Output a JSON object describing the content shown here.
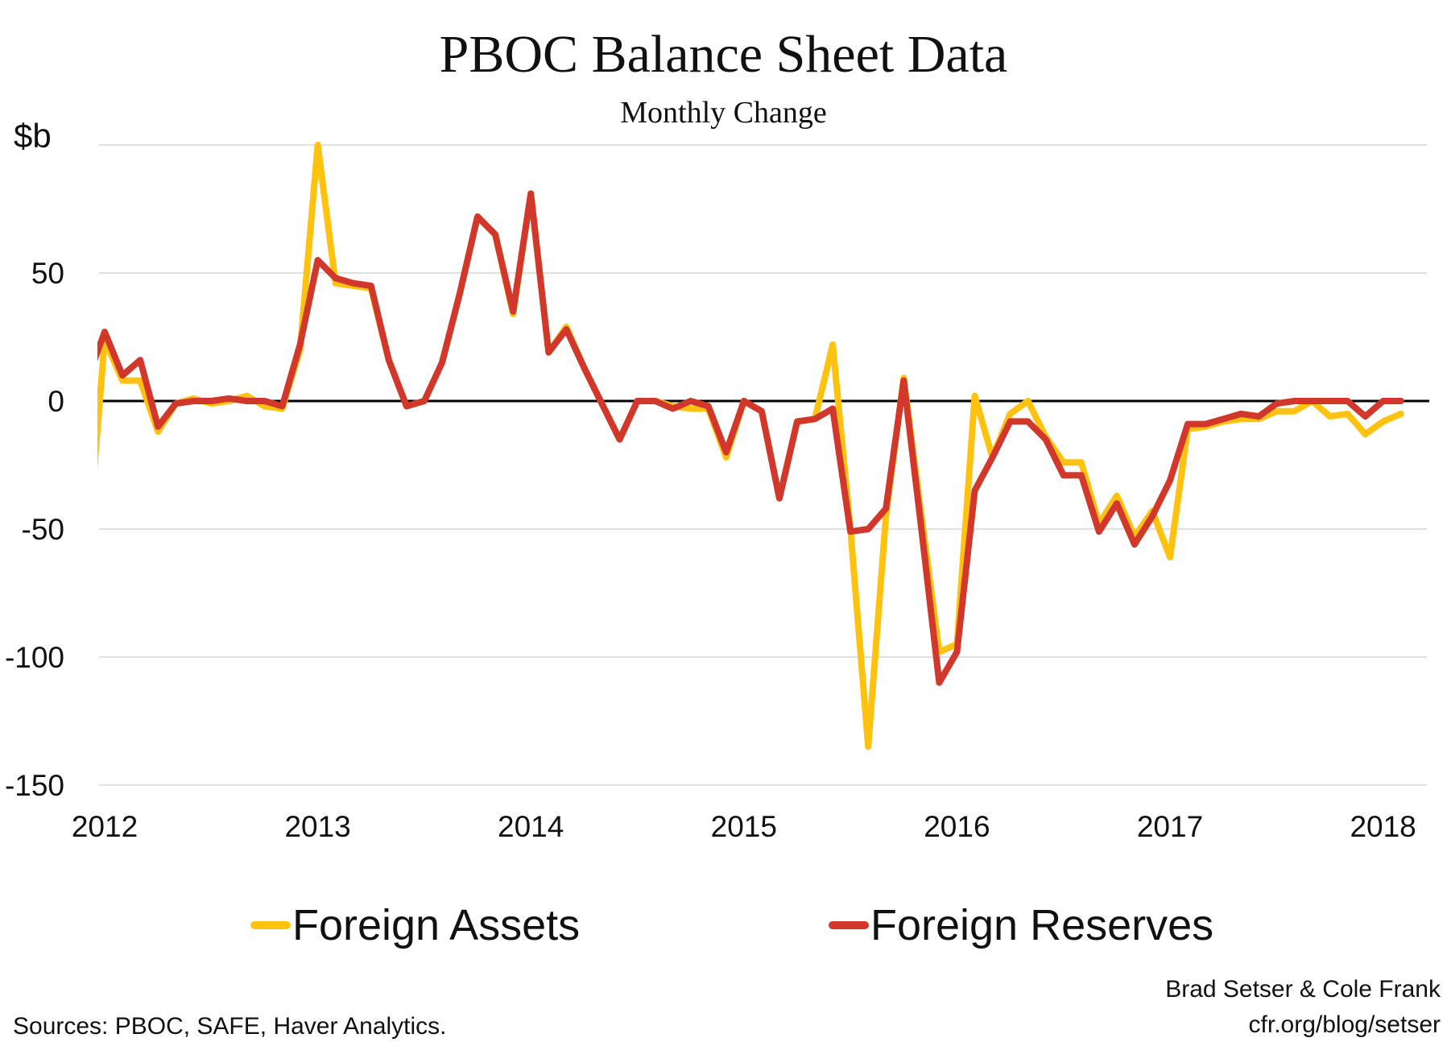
{
  "chart_data": {
    "type": "line",
    "title": "PBOC Balance Sheet Data",
    "subtitle": "Monthly Change",
    "ylabel": "$b",
    "xlabel": "",
    "ylim": [
      -150,
      100
    ],
    "yticks": [
      50,
      0,
      -50,
      -100,
      -150
    ],
    "xtick_labels": [
      "2012",
      "2013",
      "2014",
      "2015",
      "2016",
      "2017",
      "2018"
    ],
    "grid": true,
    "legend": "bottom",
    "x_start": "2011-12",
    "x_frequency": "monthly",
    "series": [
      {
        "name": "Foreign Assets",
        "color": "#FFC20E",
        "values": [
          -62,
          24,
          8,
          8,
          -12,
          -1,
          1,
          -1,
          0,
          2,
          -2,
          -3,
          20,
          100,
          46,
          45,
          44,
          16,
          -2,
          0,
          15,
          42,
          72,
          65,
          34,
          81,
          19,
          29,
          13,
          -1,
          -15,
          0,
          0,
          -2,
          -3,
          -3,
          -22,
          0,
          -4,
          -38,
          -8,
          -7,
          22,
          -50,
          -135,
          -45,
          9,
          -45,
          -98,
          -95,
          2,
          -22,
          -5,
          0,
          -14,
          -24,
          -24,
          -48,
          -37,
          -53,
          -43,
          -61,
          -11,
          -10,
          -8,
          -7,
          -7,
          -4,
          -4,
          0,
          -6,
          -5,
          -13,
          -8,
          -5
        ]
      },
      {
        "name": "Foreign Reserves",
        "color": "#D2372C",
        "values": [
          8,
          27,
          10,
          16,
          -10,
          -1,
          0,
          0,
          1,
          0,
          0,
          -2,
          22,
          55,
          48,
          46,
          45,
          16,
          -2,
          0,
          15,
          42,
          72,
          65,
          35,
          81,
          19,
          28,
          13,
          -1,
          -15,
          0,
          0,
          -3,
          0,
          -2,
          -20,
          0,
          -4,
          -38,
          -8,
          -7,
          -3,
          -51,
          -50,
          -42,
          8,
          -50,
          -110,
          -98,
          -35,
          -22,
          -8,
          -8,
          -15,
          -29,
          -29,
          -51,
          -40,
          -56,
          -45,
          -31,
          -9,
          -9,
          -7,
          -5,
          -6,
          -1,
          0,
          0,
          0,
          0,
          -6,
          0,
          0
        ]
      }
    ]
  },
  "credits": {
    "authors": "Brad Setser & Cole Frank",
    "site": "cfr.org/blog/setser"
  },
  "sources": "Sources: PBOC, SAFE, Haver Analytics."
}
